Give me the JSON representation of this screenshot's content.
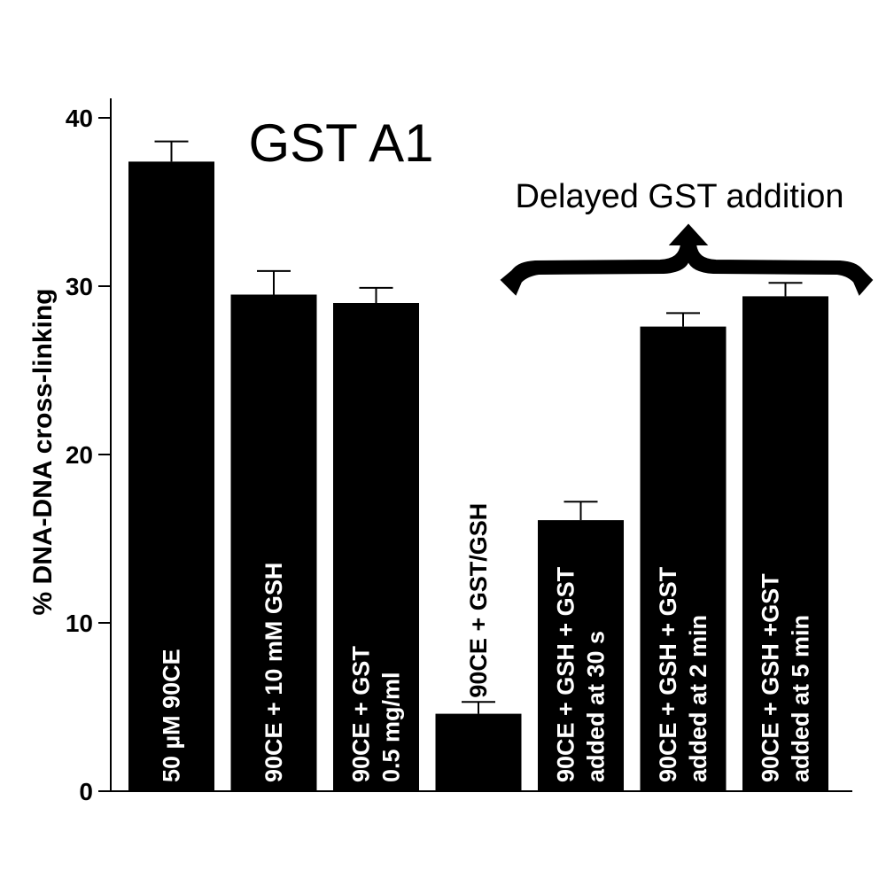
{
  "chart_data": {
    "type": "bar",
    "title": "GST A1",
    "ylabel": "% DNA-DNA cross-linking",
    "xlabel": "",
    "ylim": [
      0,
      40
    ],
    "yticks": [
      0,
      10,
      20,
      30,
      40
    ],
    "grid": false,
    "categories": [
      [
        "50 µM 90CE"
      ],
      [
        "90CE + 10 mM GSH"
      ],
      [
        "90CE + GST",
        "0.5 mg/ml"
      ],
      [
        "90CE + GST/GSH"
      ],
      [
        "90CE + GSH + GST",
        "added at 30 s"
      ],
      [
        "90CE + GSH + GST",
        "added at 2 min"
      ],
      [
        "90CE + GSH +GST",
        "added at 5 min"
      ]
    ],
    "values": [
      37.4,
      29.5,
      29.0,
      4.6,
      16.1,
      27.6,
      29.4
    ],
    "errors": [
      1.2,
      1.4,
      0.9,
      0.7,
      1.1,
      0.8,
      0.8
    ],
    "annotation": {
      "text": "Delayed GST addition",
      "spans_categories": [
        4,
        5,
        6
      ]
    },
    "colors": {
      "bar": "#000000",
      "background": "#ffffff"
    }
  }
}
